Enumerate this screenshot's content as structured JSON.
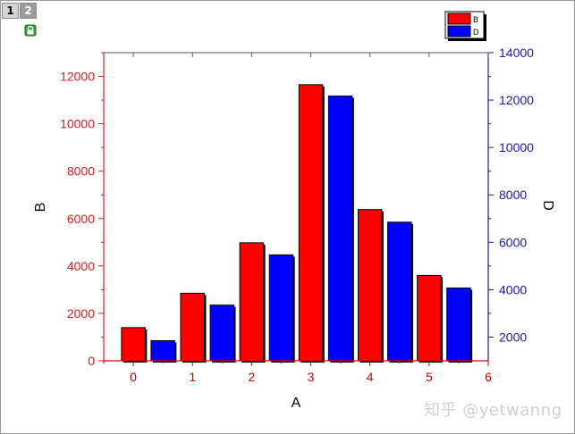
{
  "window": {
    "layer_tabs": [
      "1",
      "2"
    ],
    "active_tab": "1",
    "watermark": "知乎 @yetwanng"
  },
  "colors": {
    "left_axis": "#e31a1c",
    "right_axis": "#1a1aa8",
    "bottom_axis": "#cc0000",
    "series_B": "#ff0000",
    "series_D": "#0000ff"
  },
  "chart_data": {
    "type": "bar",
    "xlabel": "A",
    "ylabel_left": "B",
    "ylabel_right": "D",
    "xlim": [
      -0.5,
      6
    ],
    "ylim_left": [
      0,
      13000
    ],
    "ylim_right": [
      1000,
      14000
    ],
    "x_ticks": [
      0,
      1,
      2,
      3,
      4,
      5,
      6
    ],
    "y_ticks_left": [
      0,
      2000,
      4000,
      6000,
      8000,
      10000,
      12000
    ],
    "y_ticks_right": [
      2000,
      4000,
      6000,
      8000,
      10000,
      12000,
      14000
    ],
    "legend_position": "top-right",
    "grid": false,
    "series": [
      {
        "name": "B",
        "axis": "left",
        "x": [
          0,
          1,
          2,
          3,
          4,
          5
        ],
        "values": [
          1400,
          2850,
          4980,
          11650,
          6380,
          3600
        ]
      },
      {
        "name": "D",
        "axis": "right",
        "x": [
          0.5,
          1.5,
          2.5,
          3.5,
          4.5,
          5.5
        ],
        "values": [
          1850,
          3350,
          5470,
          12170,
          6850,
          4070
        ]
      }
    ]
  }
}
